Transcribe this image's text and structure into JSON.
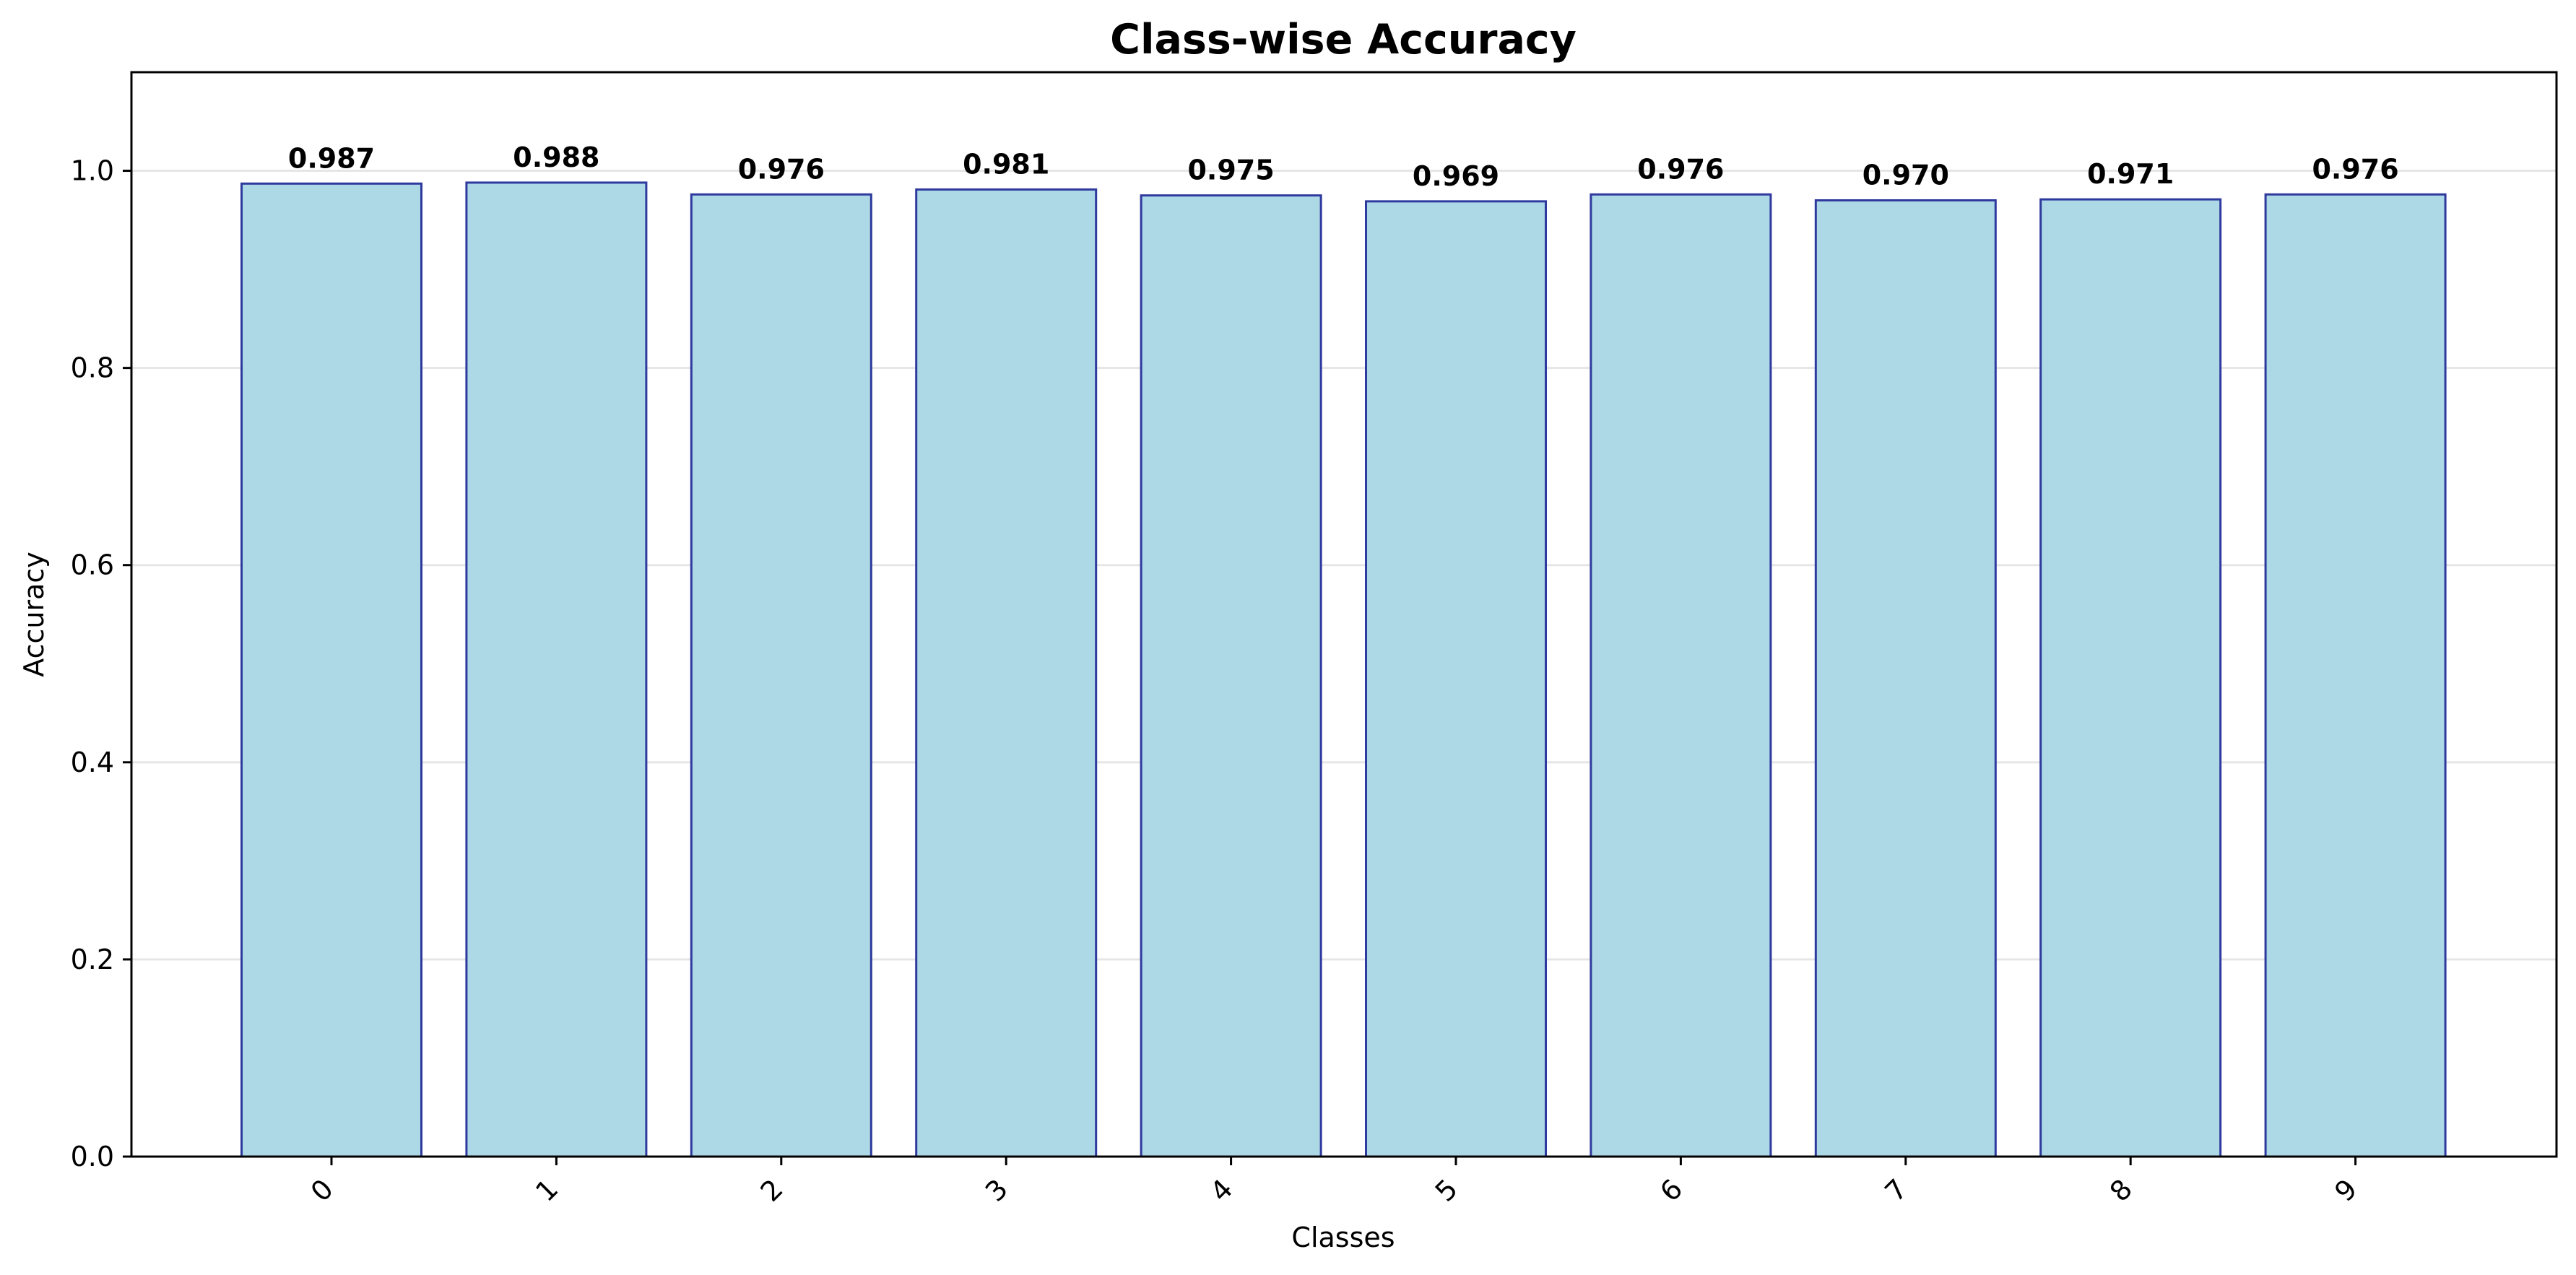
{
  "chart_data": {
    "type": "bar",
    "title": "Class-wise Accuracy",
    "xlabel": "Classes",
    "ylabel": "Accuracy",
    "categories": [
      "0",
      "1",
      "2",
      "3",
      "4",
      "5",
      "6",
      "7",
      "8",
      "9"
    ],
    "values": [
      0.987,
      0.988,
      0.976,
      0.981,
      0.975,
      0.969,
      0.976,
      0.97,
      0.971,
      0.976
    ],
    "data_labels": [
      "0.987",
      "0.988",
      "0.976",
      "0.981",
      "0.975",
      "0.969",
      "0.976",
      "0.970",
      "0.971",
      "0.976"
    ],
    "ylim": [
      0,
      1.1
    ],
    "yticks": [
      0.0,
      0.2,
      0.4,
      0.6,
      0.8,
      1.0
    ],
    "ytick_labels": [
      "0.0",
      "0.2",
      "0.4",
      "0.6",
      "0.8",
      "1.0"
    ],
    "xtick_rotation_deg": 45,
    "grid": "horizontal",
    "legend": "none",
    "colors": {
      "bar_fill": "#add8e6",
      "bar_edge": "#2e3a9e",
      "grid": "#e6e6e6",
      "axis": "#000000",
      "text": "#000000"
    }
  }
}
